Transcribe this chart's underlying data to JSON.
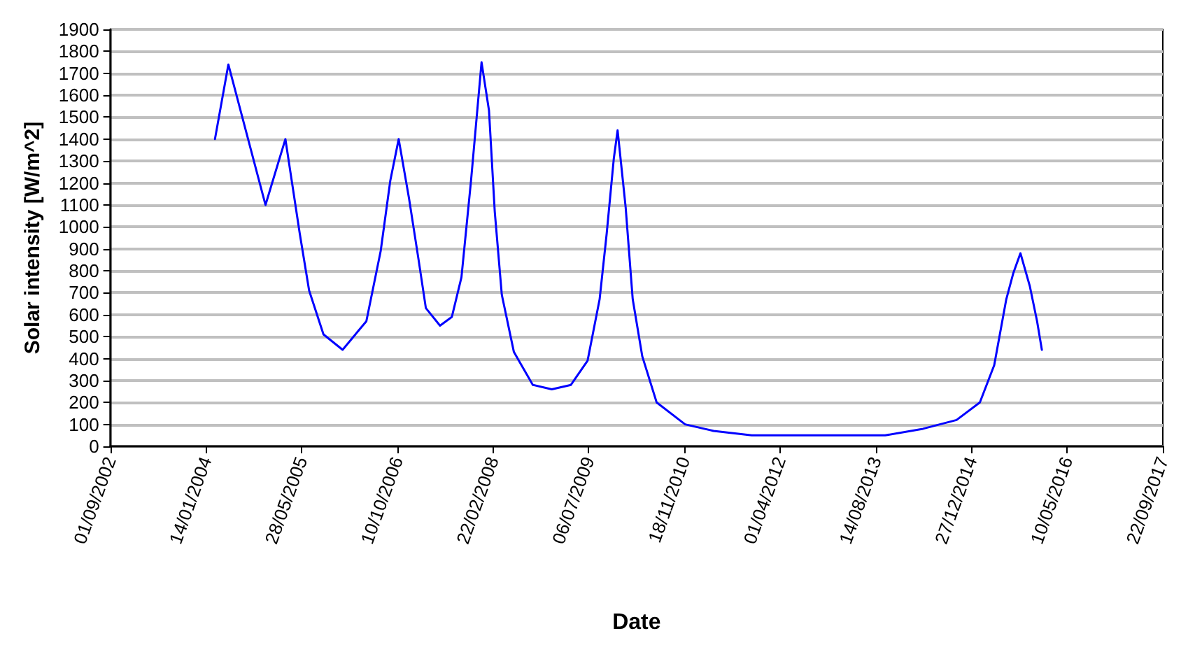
{
  "chart_data": {
    "type": "line",
    "xlabel": "Date",
    "ylabel": "Solar intensity [W/m^2]",
    "x": [
      "2004-03-01",
      "2004-05-10",
      "2004-11-20",
      "2005-03-04",
      "2005-05-18",
      "2005-07-06",
      "2005-09-19",
      "2005-12-28",
      "2006-05-01",
      "2006-07-15",
      "2006-09-03",
      "2006-10-17",
      "2006-12-10",
      "2007-01-29",
      "2007-03-08",
      "2007-05-21",
      "2007-07-22",
      "2007-09-10",
      "2007-10-30",
      "2007-12-24",
      "2008-02-01",
      "2008-03-02",
      "2008-04-08",
      "2008-06-10",
      "2008-09-17",
      "2008-12-25",
      "2009-04-04",
      "2009-06-30",
      "2009-09-01",
      "2009-10-08",
      "2009-11-14",
      "2009-12-04",
      "2010-01-15",
      "2010-02-21",
      "2010-04-12",
      "2010-06-26",
      "2010-11-22",
      "2011-04-20",
      "2011-11-05",
      "2013-10-02",
      "2014-04-18",
      "2014-10-10",
      "2015-02-09",
      "2015-04-25",
      "2015-06-27",
      "2015-08-03",
      "2015-09-09",
      "2015-10-28",
      "2015-12-05",
      "2015-12-30"
    ],
    "series": [
      {
        "color": "#0000ff",
        "values": [
          1400,
          1740,
          1100,
          1400,
          970,
          710,
          510,
          440,
          570,
          890,
          1210,
          1400,
          1130,
          850,
          630,
          550,
          590,
          770,
          1210,
          1750,
          1530,
          1070,
          690,
          430,
          280,
          260,
          280,
          390,
          670,
          970,
          1310,
          1440,
          1090,
          670,
          410,
          200,
          100,
          70,
          50,
          50,
          80,
          120,
          200,
          370,
          670,
          790,
          880,
          730,
          570,
          440
        ]
      }
    ],
    "xlim": [
      "2002-09-01",
      "2017-09-22"
    ],
    "xticks": [
      {
        "value": "2002-09-01",
        "label": "01/09/2002"
      },
      {
        "value": "2004-01-14",
        "label": "14/01/2004"
      },
      {
        "value": "2005-05-28",
        "label": "28/05/2005"
      },
      {
        "value": "2006-10-10",
        "label": "10/10/2006"
      },
      {
        "value": "2008-02-22",
        "label": "22/02/2008"
      },
      {
        "value": "2009-07-06",
        "label": "06/07/2009"
      },
      {
        "value": "2010-11-18",
        "label": "18/11/2010"
      },
      {
        "value": "2012-04-01",
        "label": "01/04/2012"
      },
      {
        "value": "2013-08-14",
        "label": "14/08/2013"
      },
      {
        "value": "2014-12-27",
        "label": "27/12/2014"
      },
      {
        "value": "2016-05-10",
        "label": "10/05/2016"
      },
      {
        "value": "2017-09-22",
        "label": "22/09/2017"
      }
    ],
    "ylim": [
      0,
      1900
    ],
    "yticks": [
      0,
      100,
      200,
      300,
      400,
      500,
      600,
      700,
      800,
      900,
      1000,
      1100,
      1200,
      1300,
      1400,
      1500,
      1600,
      1700,
      1800,
      1900
    ],
    "grid": "y",
    "marker": "none",
    "line_style": "solid"
  }
}
